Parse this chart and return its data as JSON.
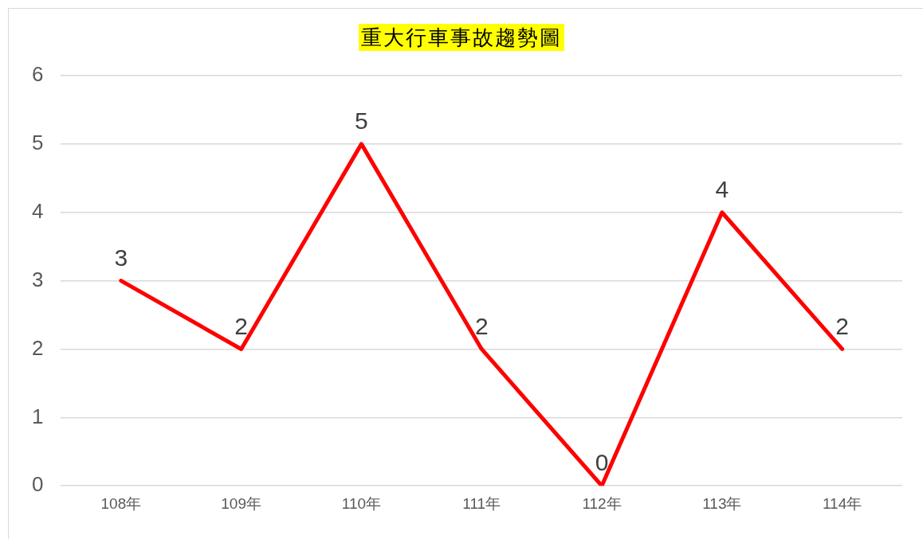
{
  "chart_data": {
    "type": "line",
    "title": "重大行車事故趨勢圖",
    "categories": [
      "108年",
      "109年",
      "110年",
      "111年",
      "112年",
      "113年",
      "114年"
    ],
    "series": [
      {
        "color": "#ff0000",
        "values": [
          3,
          2,
          5,
          2,
          0,
          4,
          2
        ]
      }
    ],
    "ylim": [
      0,
      6
    ],
    "yticks": [
      0,
      1,
      2,
      3,
      4,
      5,
      6
    ],
    "grid": "y",
    "legend": false,
    "marker": "none",
    "line_style": "solid",
    "data_labels": true
  }
}
